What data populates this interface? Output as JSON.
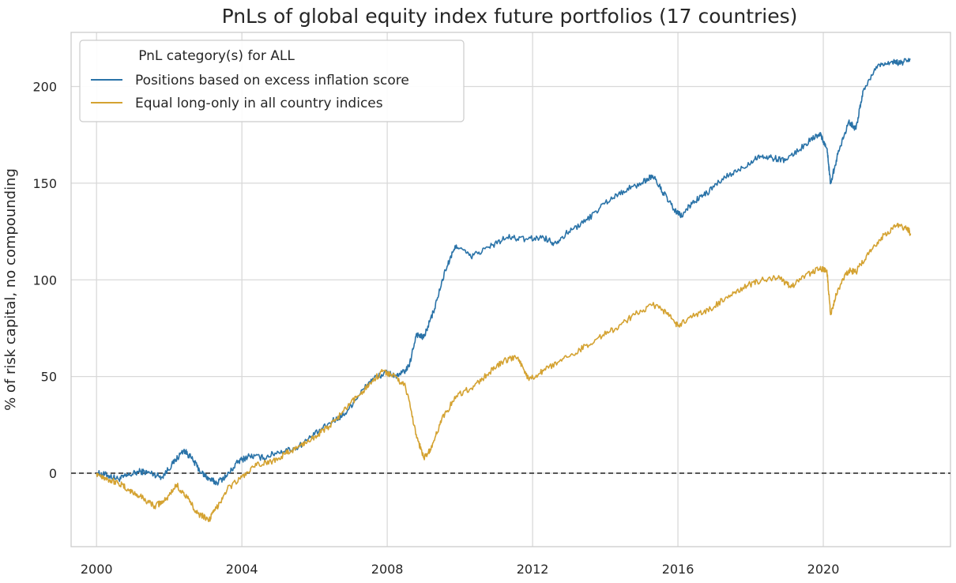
{
  "chart_data": {
    "type": "line",
    "title": "PnLs of global equity index future portfolios (17 countries)",
    "xlabel": "",
    "ylabel": "% of risk capital, no compounding",
    "xlim": [
      1999.3,
      2023.5
    ],
    "ylim": [
      -38,
      228
    ],
    "x_ticks": [
      2000,
      2004,
      2008,
      2012,
      2016,
      2020
    ],
    "y_ticks": [
      0,
      50,
      100,
      150,
      200
    ],
    "grid": true,
    "reference_line": {
      "y": 0,
      "style": "dashed",
      "color": "#222222"
    },
    "legend": {
      "title": "PnL category(s) for ALL",
      "position": "upper-left"
    },
    "series": [
      {
        "name": "Positions based on excess inflation score",
        "color": "#2a73a8",
        "points": [
          [
            2000.0,
            0
          ],
          [
            2000.3,
            -1
          ],
          [
            2000.6,
            -3
          ],
          [
            2000.9,
            -1
          ],
          [
            2001.2,
            1
          ],
          [
            2001.5,
            0
          ],
          [
            2001.8,
            -2
          ],
          [
            2002.1,
            5
          ],
          [
            2002.4,
            12
          ],
          [
            2002.6,
            8
          ],
          [
            2002.9,
            0
          ],
          [
            2003.1,
            -3
          ],
          [
            2003.3,
            -5
          ],
          [
            2003.6,
            -1
          ],
          [
            2003.9,
            6
          ],
          [
            2004.2,
            9
          ],
          [
            2004.6,
            8
          ],
          [
            2005.0,
            11
          ],
          [
            2005.5,
            13
          ],
          [
            2006.0,
            20
          ],
          [
            2006.5,
            27
          ],
          [
            2006.8,
            30
          ],
          [
            2007.2,
            40
          ],
          [
            2007.6,
            49
          ],
          [
            2008.0,
            52
          ],
          [
            2008.3,
            50
          ],
          [
            2008.6,
            55
          ],
          [
            2008.8,
            72
          ],
          [
            2009.0,
            70
          ],
          [
            2009.3,
            85
          ],
          [
            2009.6,
            105
          ],
          [
            2009.9,
            118
          ],
          [
            2010.3,
            112
          ],
          [
            2010.8,
            117
          ],
          [
            2011.3,
            122
          ],
          [
            2011.8,
            121
          ],
          [
            2012.3,
            122
          ],
          [
            2012.6,
            119
          ],
          [
            2013.0,
            125
          ],
          [
            2013.5,
            131
          ],
          [
            2014.0,
            140
          ],
          [
            2014.5,
            146
          ],
          [
            2015.0,
            150
          ],
          [
            2015.3,
            154
          ],
          [
            2015.6,
            145
          ],
          [
            2015.9,
            136
          ],
          [
            2016.1,
            133
          ],
          [
            2016.4,
            140
          ],
          [
            2016.8,
            145
          ],
          [
            2017.3,
            153
          ],
          [
            2017.8,
            158
          ],
          [
            2018.2,
            164
          ],
          [
            2018.6,
            163
          ],
          [
            2019.0,
            162
          ],
          [
            2019.5,
            170
          ],
          [
            2019.9,
            176
          ],
          [
            2020.1,
            168
          ],
          [
            2020.2,
            150
          ],
          [
            2020.4,
            165
          ],
          [
            2020.7,
            182
          ],
          [
            2020.9,
            178
          ],
          [
            2021.1,
            198
          ],
          [
            2021.5,
            211
          ],
          [
            2021.9,
            213
          ],
          [
            2022.1,
            212
          ],
          [
            2022.4,
            214
          ]
        ]
      },
      {
        "name": "Equal long-only in all country indices",
        "color": "#d4a231",
        "points": [
          [
            2000.0,
            0
          ],
          [
            2000.3,
            -3
          ],
          [
            2000.6,
            -5
          ],
          [
            2000.9,
            -9
          ],
          [
            2001.2,
            -12
          ],
          [
            2001.6,
            -17
          ],
          [
            2001.9,
            -14
          ],
          [
            2002.2,
            -6
          ],
          [
            2002.5,
            -13
          ],
          [
            2002.8,
            -21
          ],
          [
            2003.1,
            -24
          ],
          [
            2003.3,
            -18
          ],
          [
            2003.6,
            -8
          ],
          [
            2004.0,
            -2
          ],
          [
            2004.4,
            4
          ],
          [
            2004.8,
            6
          ],
          [
            2005.2,
            10
          ],
          [
            2005.6,
            14
          ],
          [
            2006.0,
            19
          ],
          [
            2006.4,
            24
          ],
          [
            2006.8,
            32
          ],
          [
            2007.2,
            40
          ],
          [
            2007.6,
            48
          ],
          [
            2007.9,
            53
          ],
          [
            2008.2,
            50
          ],
          [
            2008.5,
            45
          ],
          [
            2008.8,
            20
          ],
          [
            2009.0,
            8
          ],
          [
            2009.2,
            12
          ],
          [
            2009.5,
            28
          ],
          [
            2009.9,
            40
          ],
          [
            2010.4,
            45
          ],
          [
            2010.8,
            52
          ],
          [
            2011.2,
            58
          ],
          [
            2011.6,
            60
          ],
          [
            2011.9,
            48
          ],
          [
            2012.3,
            53
          ],
          [
            2012.8,
            58
          ],
          [
            2013.3,
            64
          ],
          [
            2013.8,
            70
          ],
          [
            2014.3,
            75
          ],
          [
            2014.8,
            82
          ],
          [
            2015.3,
            87
          ],
          [
            2015.7,
            83
          ],
          [
            2016.0,
            76
          ],
          [
            2016.4,
            81
          ],
          [
            2016.9,
            85
          ],
          [
            2017.4,
            92
          ],
          [
            2017.9,
            97
          ],
          [
            2018.3,
            100
          ],
          [
            2018.8,
            101
          ],
          [
            2019.1,
            96
          ],
          [
            2019.5,
            102
          ],
          [
            2019.9,
            106
          ],
          [
            2020.1,
            105
          ],
          [
            2020.2,
            82
          ],
          [
            2020.4,
            95
          ],
          [
            2020.7,
            105
          ],
          [
            2020.9,
            104
          ],
          [
            2021.2,
            113
          ],
          [
            2021.6,
            122
          ],
          [
            2022.0,
            128
          ],
          [
            2022.3,
            127
          ],
          [
            2022.4,
            124
          ]
        ]
      }
    ]
  }
}
